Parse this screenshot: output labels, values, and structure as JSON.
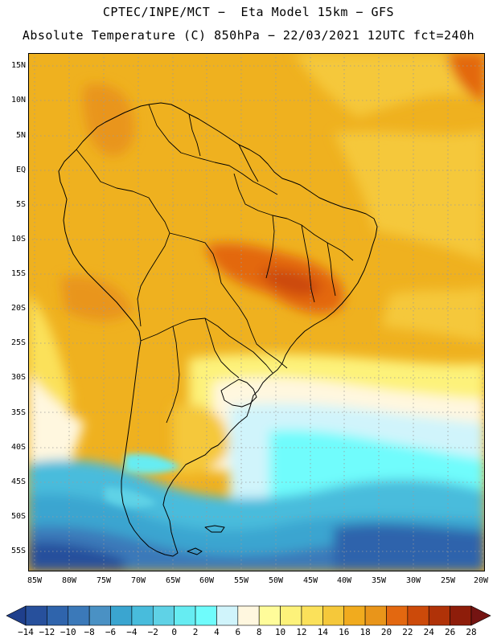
{
  "header": {
    "line1": "CPTEC/INPE/MCT −  Eta Model 15km − GFS",
    "line2": "Absolute Temperature (C) 850hPa − 22/03/2021 12UTC fct=240h"
  },
  "map": {
    "lat_labels": [
      "15N",
      "10N",
      "5N",
      "EQ",
      "5S",
      "10S",
      "15S",
      "20S",
      "25S",
      "30S",
      "35S",
      "40S",
      "45S",
      "50S",
      "55S"
    ],
    "lon_labels": [
      "85W",
      "80W",
      "75W",
      "70W",
      "65W",
      "60W",
      "55W",
      "50W",
      "45W",
      "40W",
      "35W",
      "30W",
      "25W",
      "20W"
    ]
  },
  "colorbar": {
    "labels": [
      "-14",
      "-12",
      "-10",
      "-8",
      "-6",
      "-4",
      "-2",
      "0",
      "2",
      "4",
      "6",
      "8",
      "10",
      "12",
      "14",
      "16",
      "18",
      "20",
      "22",
      "24",
      "26",
      "28"
    ],
    "colors": [
      "#1f3f8c",
      "#27509c",
      "#2f64ac",
      "#3b79b9",
      "#4a91c4",
      "#3aa5d0",
      "#48bcdc",
      "#5fd2e6",
      "#66ecf2",
      "#6ffcfc",
      "#d0f4fb",
      "#fff7df",
      "#fffc9a",
      "#fdf27a",
      "#fbe15a",
      "#f5c83a",
      "#f1ab1e",
      "#e9951a",
      "#e36810",
      "#cc4a0a",
      "#b03208",
      "#8e1d0a",
      "#741412"
    ]
  }
}
